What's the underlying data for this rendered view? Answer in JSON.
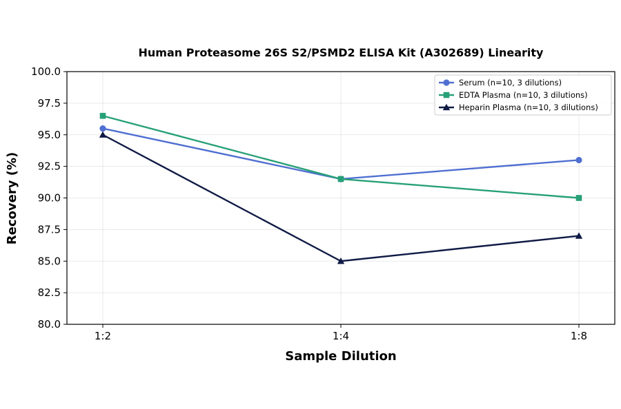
{
  "chart_data": {
    "type": "line",
    "title": "Human Proteasome 26S S2/PSMD2 ELISA Kit (A302689) Linearity",
    "xlabel": "Sample Dilution",
    "ylabel": "Recovery (%)",
    "categories": [
      "1:2",
      "1:4",
      "1:8"
    ],
    "ylim": [
      80.0,
      100.0
    ],
    "yticks": [
      "80.0",
      "82.5",
      "85.0",
      "87.5",
      "90.0",
      "92.5",
      "95.0",
      "97.5",
      "100.0"
    ],
    "grid": true,
    "legend_position": "top-right",
    "series": [
      {
        "name": "Serum (n=10, 3 dilutions)",
        "values": [
          95.5,
          91.5,
          93.0
        ],
        "color": "#4f6fd1",
        "marker": "circle"
      },
      {
        "name": "EDTA Plasma (n=10, 3 dilutions)",
        "values": [
          96.5,
          91.5,
          90.0
        ],
        "color": "#26a077",
        "marker": "square"
      },
      {
        "name": "Heparin Plasma (n=10, 3 dilutions)",
        "values": [
          95.0,
          85.0,
          87.0
        ],
        "color": "#0f1a45",
        "marker": "triangle"
      }
    ]
  }
}
